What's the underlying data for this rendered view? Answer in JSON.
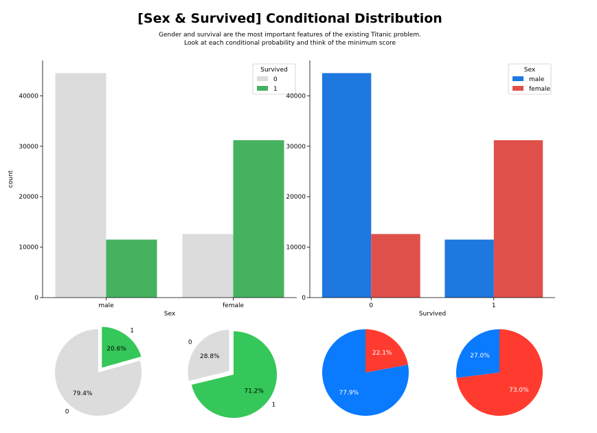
{
  "figure": {
    "title": "[Sex & Survived] Conditional Distribution",
    "subtitle_line1": "Gender and survival are the most important features of the existing Titanic problem.",
    "subtitle_line2": "Look at each conditional probability and think of the minimum score"
  },
  "colors": {
    "grey": "#dcdcdc",
    "green": "#46b25f",
    "blue": "#1f77e0",
    "red": "#e0504a",
    "pie_green": "#35c759",
    "pie_blue": "#0a7aff",
    "pie_red": "#ff3b30"
  },
  "chart_data": [
    {
      "type": "bar",
      "id": "bar-sex",
      "categories": [
        "male",
        "female"
      ],
      "xlabel": "Sex",
      "ylabel": "count",
      "ylim": [
        0,
        47000
      ],
      "yticks": [
        0,
        10000,
        20000,
        30000,
        40000
      ],
      "legend_title": "Survived",
      "legend_position": "top-right",
      "series": [
        {
          "name": "0",
          "color": "#dcdcdc",
          "values": [
            44500,
            12600
          ]
        },
        {
          "name": "1",
          "color": "#46b25f",
          "values": [
            11500,
            31200
          ]
        }
      ]
    },
    {
      "type": "bar",
      "id": "bar-survived",
      "categories": [
        "0",
        "1"
      ],
      "xlabel": "Survived",
      "ylabel": "",
      "ylim": [
        0,
        47000
      ],
      "yticks": [
        0,
        10000,
        20000,
        30000,
        40000
      ],
      "legend_title": "Sex",
      "legend_position": "top-right",
      "series": [
        {
          "name": "male",
          "color": "#1f77e0",
          "values": [
            44500,
            11500
          ]
        },
        {
          "name": "female",
          "color": "#e0504a",
          "values": [
            12600,
            31200
          ]
        }
      ]
    },
    {
      "type": "pie",
      "id": "pie-male",
      "slices": [
        {
          "label": "0",
          "pct": "79.4%",
          "value": 79.4,
          "color": "#dcdcdc",
          "explode": false
        },
        {
          "label": "1",
          "pct": "20.6%",
          "value": 20.6,
          "color": "#35c759",
          "explode": true
        }
      ],
      "start_angle_deg": 90,
      "show_labels": true
    },
    {
      "type": "pie",
      "id": "pie-female",
      "slices": [
        {
          "label": "0",
          "pct": "28.8%",
          "value": 28.8,
          "color": "#dcdcdc",
          "explode": true
        },
        {
          "label": "1",
          "pct": "71.2%",
          "value": 71.2,
          "color": "#35c759",
          "explode": false
        }
      ],
      "start_angle_deg": 90,
      "show_labels": true
    },
    {
      "type": "pie",
      "id": "pie-survived0",
      "slices": [
        {
          "label": "male",
          "pct": "77.9%",
          "value": 77.9,
          "color": "#0a7aff",
          "explode": false
        },
        {
          "label": "female",
          "pct": "22.1%",
          "value": 22.1,
          "color": "#ff3b30",
          "explode": false
        }
      ],
      "start_angle_deg": 90,
      "show_labels": false
    },
    {
      "type": "pie",
      "id": "pie-survived1",
      "slices": [
        {
          "label": "male",
          "pct": "27.0%",
          "value": 27.0,
          "color": "#0a7aff",
          "explode": false
        },
        {
          "label": "female",
          "pct": "73.0%",
          "value": 73.0,
          "color": "#ff3b30",
          "explode": false
        }
      ],
      "start_angle_deg": 90,
      "show_labels": false
    }
  ]
}
